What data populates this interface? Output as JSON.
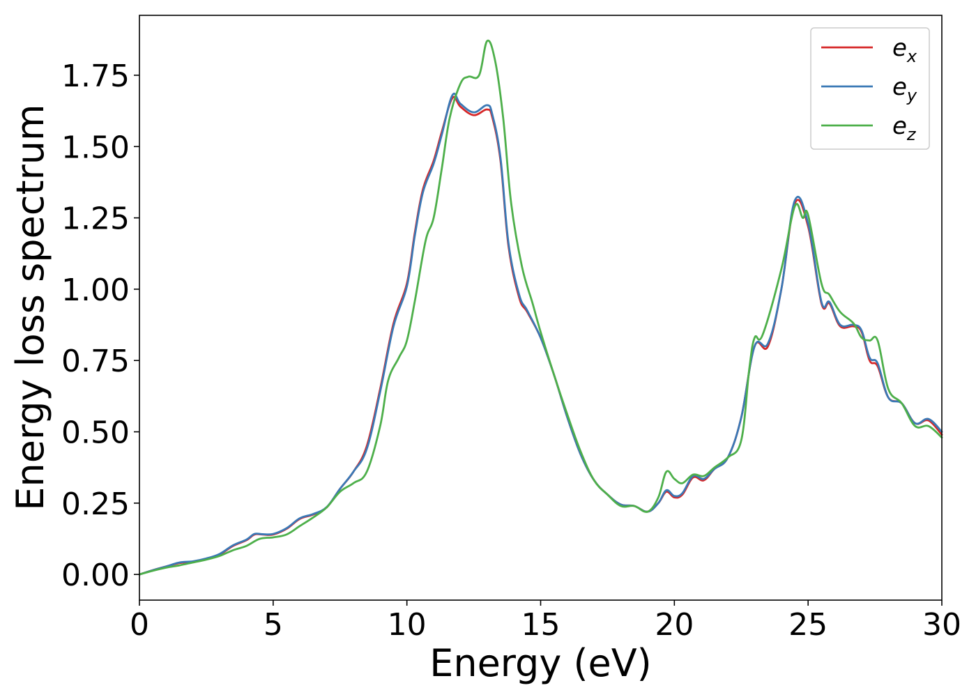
{
  "chart_data": {
    "type": "line",
    "xlabel": "Energy (eV)",
    "ylabel": "Energy loss spectrum",
    "xlim": [
      0,
      30
    ],
    "ylim": [
      -0.09,
      1.96
    ],
    "x_ticks": [
      "0",
      "5",
      "10",
      "15",
      "20",
      "25",
      "30"
    ],
    "y_ticks": [
      "0.00",
      "0.25",
      "0.50",
      "0.75",
      "1.00",
      "1.25",
      "1.50",
      "1.75"
    ],
    "grid": false,
    "legend_position": "top-right",
    "series": [
      {
        "name": "e",
        "subscript": "x",
        "color": "#d62728",
        "points": [
          [
            0,
            0
          ],
          [
            0.5,
            0.015
          ],
          [
            1,
            0.028
          ],
          [
            1.5,
            0.04
          ],
          [
            2,
            0.045
          ],
          [
            2.5,
            0.055
          ],
          [
            3,
            0.07
          ],
          [
            3.5,
            0.1
          ],
          [
            4,
            0.12
          ],
          [
            4.3,
            0.14
          ],
          [
            4.6,
            0.14
          ],
          [
            5,
            0.14
          ],
          [
            5.5,
            0.16
          ],
          [
            6,
            0.195
          ],
          [
            6.5,
            0.21
          ],
          [
            7,
            0.235
          ],
          [
            7.5,
            0.3
          ],
          [
            8,
            0.36
          ],
          [
            8.5,
            0.45
          ],
          [
            9,
            0.65
          ],
          [
            9.5,
            0.88
          ],
          [
            10,
            1.02
          ],
          [
            10.3,
            1.2
          ],
          [
            10.6,
            1.35
          ],
          [
            11,
            1.45
          ],
          [
            11.3,
            1.55
          ],
          [
            11.7,
            1.67
          ],
          [
            12,
            1.64
          ],
          [
            12.5,
            1.61
          ],
          [
            13,
            1.63
          ],
          [
            13.2,
            1.6
          ],
          [
            13.5,
            1.45
          ],
          [
            13.8,
            1.15
          ],
          [
            14.2,
            0.97
          ],
          [
            14.5,
            0.92
          ],
          [
            15,
            0.83
          ],
          [
            15.5,
            0.7
          ],
          [
            16,
            0.55
          ],
          [
            16.5,
            0.42
          ],
          [
            17,
            0.33
          ],
          [
            17.5,
            0.28
          ],
          [
            18,
            0.245
          ],
          [
            18.5,
            0.24
          ],
          [
            19,
            0.22
          ],
          [
            19.4,
            0.25
          ],
          [
            19.7,
            0.29
          ],
          [
            20,
            0.27
          ],
          [
            20.3,
            0.28
          ],
          [
            20.7,
            0.34
          ],
          [
            21.1,
            0.33
          ],
          [
            21.5,
            0.37
          ],
          [
            22,
            0.41
          ],
          [
            22.5,
            0.55
          ],
          [
            23,
            0.8
          ],
          [
            23.5,
            0.8
          ],
          [
            24,
            1.0
          ],
          [
            24.5,
            1.3
          ],
          [
            25,
            1.22
          ],
          [
            25.5,
            0.95
          ],
          [
            25.8,
            0.95
          ],
          [
            26.2,
            0.87
          ],
          [
            26.7,
            0.87
          ],
          [
            27,
            0.85
          ],
          [
            27.3,
            0.75
          ],
          [
            27.6,
            0.73
          ],
          [
            28,
            0.62
          ],
          [
            28.5,
            0.6
          ],
          [
            29,
            0.53
          ],
          [
            29.5,
            0.54
          ],
          [
            30,
            0.49
          ]
        ]
      },
      {
        "name": "e",
        "subscript": "y",
        "color": "#3a78b5",
        "points": [
          [
            0,
            0
          ],
          [
            0.5,
            0.015
          ],
          [
            1,
            0.028
          ],
          [
            1.5,
            0.042
          ],
          [
            2,
            0.046
          ],
          [
            2.5,
            0.056
          ],
          [
            3,
            0.072
          ],
          [
            3.5,
            0.102
          ],
          [
            4,
            0.122
          ],
          [
            4.3,
            0.142
          ],
          [
            4.6,
            0.141
          ],
          [
            5,
            0.142
          ],
          [
            5.5,
            0.162
          ],
          [
            6,
            0.197
          ],
          [
            6.5,
            0.212
          ],
          [
            7,
            0.236
          ],
          [
            7.5,
            0.3
          ],
          [
            8,
            0.36
          ],
          [
            8.5,
            0.44
          ],
          [
            9,
            0.64
          ],
          [
            9.5,
            0.87
          ],
          [
            10,
            1.01
          ],
          [
            10.3,
            1.19
          ],
          [
            10.6,
            1.34
          ],
          [
            11,
            1.44
          ],
          [
            11.3,
            1.54
          ],
          [
            11.7,
            1.68
          ],
          [
            12,
            1.65
          ],
          [
            12.5,
            1.62
          ],
          [
            13,
            1.645
          ],
          [
            13.2,
            1.61
          ],
          [
            13.5,
            1.46
          ],
          [
            13.8,
            1.16
          ],
          [
            14.2,
            0.98
          ],
          [
            14.5,
            0.925
          ],
          [
            15,
            0.83
          ],
          [
            15.5,
            0.7
          ],
          [
            16,
            0.55
          ],
          [
            16.5,
            0.42
          ],
          [
            17,
            0.33
          ],
          [
            17.5,
            0.28
          ],
          [
            18,
            0.245
          ],
          [
            18.5,
            0.24
          ],
          [
            19,
            0.22
          ],
          [
            19.4,
            0.25
          ],
          [
            19.7,
            0.295
          ],
          [
            20,
            0.275
          ],
          [
            20.3,
            0.285
          ],
          [
            20.7,
            0.345
          ],
          [
            21.1,
            0.335
          ],
          [
            21.5,
            0.37
          ],
          [
            22,
            0.41
          ],
          [
            22.5,
            0.55
          ],
          [
            23,
            0.8
          ],
          [
            23.5,
            0.81
          ],
          [
            24,
            1.0
          ],
          [
            24.5,
            1.31
          ],
          [
            25,
            1.23
          ],
          [
            25.5,
            0.955
          ],
          [
            25.8,
            0.955
          ],
          [
            26.2,
            0.875
          ],
          [
            26.7,
            0.875
          ],
          [
            27,
            0.855
          ],
          [
            27.3,
            0.76
          ],
          [
            27.6,
            0.74
          ],
          [
            28,
            0.62
          ],
          [
            28.5,
            0.6
          ],
          [
            29,
            0.53
          ],
          [
            29.5,
            0.545
          ],
          [
            30,
            0.5
          ]
        ]
      },
      {
        "name": "e",
        "subscript": "z",
        "color": "#4daf4a",
        "points": [
          [
            0,
            0
          ],
          [
            0.5,
            0.013
          ],
          [
            1,
            0.024
          ],
          [
            1.5,
            0.032
          ],
          [
            2,
            0.042
          ],
          [
            2.5,
            0.052
          ],
          [
            3,
            0.065
          ],
          [
            3.5,
            0.085
          ],
          [
            4,
            0.1
          ],
          [
            4.5,
            0.125
          ],
          [
            5,
            0.13
          ],
          [
            5.5,
            0.14
          ],
          [
            6,
            0.17
          ],
          [
            6.5,
            0.2
          ],
          [
            7,
            0.235
          ],
          [
            7.5,
            0.29
          ],
          [
            8,
            0.32
          ],
          [
            8.5,
            0.36
          ],
          [
            9,
            0.52
          ],
          [
            9.3,
            0.68
          ],
          [
            9.7,
            0.76
          ],
          [
            10,
            0.82
          ],
          [
            10.3,
            0.96
          ],
          [
            10.7,
            1.17
          ],
          [
            11,
            1.25
          ],
          [
            11.3,
            1.42
          ],
          [
            11.6,
            1.6
          ],
          [
            12,
            1.72
          ],
          [
            12.3,
            1.745
          ],
          [
            12.7,
            1.75
          ],
          [
            13,
            1.87
          ],
          [
            13.3,
            1.8
          ],
          [
            13.6,
            1.6
          ],
          [
            13.9,
            1.3
          ],
          [
            14.3,
            1.08
          ],
          [
            14.7,
            0.95
          ],
          [
            15,
            0.85
          ],
          [
            15.5,
            0.7
          ],
          [
            16,
            0.56
          ],
          [
            16.5,
            0.43
          ],
          [
            17,
            0.33
          ],
          [
            17.5,
            0.28
          ],
          [
            18,
            0.24
          ],
          [
            18.5,
            0.24
          ],
          [
            19,
            0.22
          ],
          [
            19.4,
            0.27
          ],
          [
            19.7,
            0.36
          ],
          [
            20,
            0.335
          ],
          [
            20.3,
            0.32
          ],
          [
            20.7,
            0.35
          ],
          [
            21.1,
            0.345
          ],
          [
            21.5,
            0.375
          ],
          [
            22,
            0.41
          ],
          [
            22.5,
            0.47
          ],
          [
            22.8,
            0.72
          ],
          [
            23,
            0.83
          ],
          [
            23.3,
            0.84
          ],
          [
            24,
            1.07
          ],
          [
            24.5,
            1.29
          ],
          [
            24.8,
            1.25
          ],
          [
            25,
            1.26
          ],
          [
            25.5,
            1.02
          ],
          [
            25.8,
            0.98
          ],
          [
            26.2,
            0.92
          ],
          [
            26.7,
            0.88
          ],
          [
            27,
            0.83
          ],
          [
            27.3,
            0.82
          ],
          [
            27.6,
            0.82
          ],
          [
            28,
            0.65
          ],
          [
            28.5,
            0.6
          ],
          [
            29,
            0.52
          ],
          [
            29.5,
            0.52
          ],
          [
            30,
            0.48
          ]
        ]
      }
    ]
  }
}
